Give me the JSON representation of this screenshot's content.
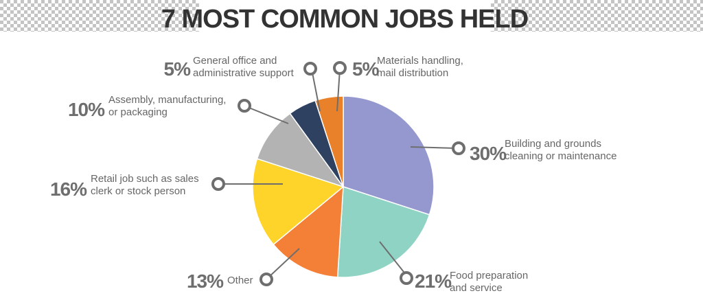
{
  "chart_data": {
    "type": "pie",
    "title": "7 MOST COMMON JOBS HELD",
    "start_angle_deg": 0,
    "direction": "clockwise",
    "slices": [
      {
        "percent_label": "30%",
        "value": 30,
        "label_lines": [
          "Building and grounds",
          "cleaning or maintenance"
        ],
        "color": "#9598cf"
      },
      {
        "percent_label": "21%",
        "value": 21,
        "label_lines": [
          "Food preparation",
          "and service"
        ],
        "color": "#8fd3c5"
      },
      {
        "percent_label": "13%",
        "value": 13,
        "label_lines": [
          "Other"
        ],
        "color": "#f47f36"
      },
      {
        "percent_label": "16%",
        "value": 16,
        "label_lines": [
          "Retail job such as sales",
          "clerk or stock person"
        ],
        "color": "#fed42b"
      },
      {
        "percent_label": "10%",
        "value": 10,
        "label_lines": [
          "Assembly, manufacturing,",
          "or packaging"
        ],
        "color": "#b3b3b3"
      },
      {
        "percent_label": "5%",
        "value": 5,
        "label_lines": [
          "General office and",
          "administrative support"
        ],
        "color": "#2e4160"
      },
      {
        "percent_label": "5%",
        "value": 5,
        "label_lines": [
          "Materials handling,",
          "mail distribution"
        ],
        "color": "#e88129"
      }
    ]
  }
}
